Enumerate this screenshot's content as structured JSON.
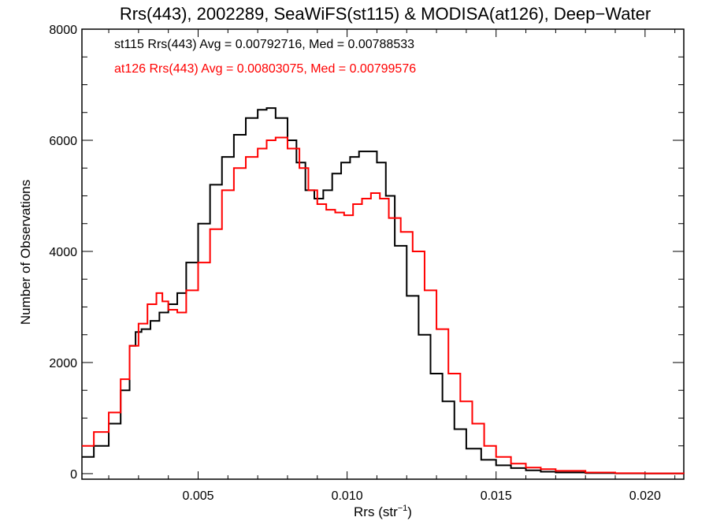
{
  "chart_data": {
    "type": "line",
    "step": true,
    "title": "Rrs(443), 2002289, SeaWiFS(st115) & MODISA(at126), Deep−Water",
    "xlabel": "Rrs (str",
    "xlabel_sup": "−1",
    "xlabel_close": ")",
    "ylabel": "Number of Observations",
    "xlim": [
      0.0011,
      0.0213
    ],
    "ylim": [
      -100,
      8000
    ],
    "xticks": [
      0.005,
      0.01,
      0.015,
      0.02
    ],
    "xtick_labels": [
      "0.005",
      "0.010",
      "0.015",
      "0.020"
    ],
    "yticks": [
      0,
      2000,
      4000,
      6000,
      8000
    ],
    "ytick_labels": [
      "0",
      "2000",
      "4000",
      "6000",
      "8000"
    ],
    "annotations": [
      {
        "text": "st115 Rrs(443) Avg = 0.00792716, Med = 0.00788533",
        "color": "#000000"
      },
      {
        "text": "at126 Rrs(443) Avg = 0.00803075, Med = 0.00799576",
        "color": "#ff0000"
      }
    ],
    "series": [
      {
        "color": "#000000",
        "points": [
          [
            0.0011,
            300
          ],
          [
            0.0015,
            500
          ],
          [
            0.002,
            900
          ],
          [
            0.0024,
            1500
          ],
          [
            0.0027,
            2300
          ],
          [
            0.0029,
            2550
          ],
          [
            0.0031,
            2600
          ],
          [
            0.0034,
            2750
          ],
          [
            0.0037,
            2900
          ],
          [
            0.004,
            3050
          ],
          [
            0.0043,
            3250
          ],
          [
            0.0046,
            3800
          ],
          [
            0.005,
            4500
          ],
          [
            0.0054,
            5200
          ],
          [
            0.0058,
            5700
          ],
          [
            0.0062,
            6100
          ],
          [
            0.0066,
            6400
          ],
          [
            0.007,
            6550
          ],
          [
            0.0073,
            6580
          ],
          [
            0.0076,
            6400
          ],
          [
            0.008,
            6000
          ],
          [
            0.0083,
            5600
          ],
          [
            0.0086,
            5100
          ],
          [
            0.0089,
            4950
          ],
          [
            0.0092,
            5100
          ],
          [
            0.0095,
            5400
          ],
          [
            0.0098,
            5600
          ],
          [
            0.0101,
            5700
          ],
          [
            0.0104,
            5800
          ],
          [
            0.0107,
            5800
          ],
          [
            0.011,
            5600
          ],
          [
            0.0113,
            5000
          ],
          [
            0.0116,
            4100
          ],
          [
            0.012,
            3200
          ],
          [
            0.0124,
            2500
          ],
          [
            0.0128,
            1800
          ],
          [
            0.0132,
            1300
          ],
          [
            0.0136,
            800
          ],
          [
            0.014,
            450
          ],
          [
            0.0145,
            250
          ],
          [
            0.015,
            150
          ],
          [
            0.0155,
            100
          ],
          [
            0.016,
            60
          ],
          [
            0.0165,
            35
          ],
          [
            0.017,
            20
          ],
          [
            0.018,
            10
          ],
          [
            0.019,
            5
          ],
          [
            0.02,
            3
          ],
          [
            0.0213,
            2
          ]
        ]
      },
      {
        "color": "#ff0000",
        "points": [
          [
            0.0011,
            500
          ],
          [
            0.0015,
            750
          ],
          [
            0.002,
            1100
          ],
          [
            0.0024,
            1700
          ],
          [
            0.0027,
            2300
          ],
          [
            0.003,
            2700
          ],
          [
            0.0033,
            3050
          ],
          [
            0.0036,
            3250
          ],
          [
            0.0038,
            3100
          ],
          [
            0.004,
            2950
          ],
          [
            0.0043,
            2900
          ],
          [
            0.0046,
            3300
          ],
          [
            0.005,
            3800
          ],
          [
            0.0054,
            4400
          ],
          [
            0.0058,
            5100
          ],
          [
            0.0062,
            5500
          ],
          [
            0.0066,
            5700
          ],
          [
            0.007,
            5850
          ],
          [
            0.0073,
            6000
          ],
          [
            0.0076,
            6050
          ],
          [
            0.008,
            5850
          ],
          [
            0.0084,
            5500
          ],
          [
            0.0087,
            5100
          ],
          [
            0.009,
            4850
          ],
          [
            0.0093,
            4750
          ],
          [
            0.0096,
            4700
          ],
          [
            0.0099,
            4650
          ],
          [
            0.0102,
            4850
          ],
          [
            0.0105,
            4950
          ],
          [
            0.0108,
            5050
          ],
          [
            0.0111,
            4950
          ],
          [
            0.0114,
            4600
          ],
          [
            0.0118,
            4350
          ],
          [
            0.0122,
            4000
          ],
          [
            0.0126,
            3300
          ],
          [
            0.013,
            2600
          ],
          [
            0.0134,
            1800
          ],
          [
            0.0138,
            1300
          ],
          [
            0.0142,
            900
          ],
          [
            0.0146,
            500
          ],
          [
            0.015,
            300
          ],
          [
            0.0155,
            180
          ],
          [
            0.016,
            110
          ],
          [
            0.0165,
            80
          ],
          [
            0.017,
            50
          ],
          [
            0.018,
            20
          ],
          [
            0.019,
            8
          ],
          [
            0.02,
            4
          ],
          [
            0.0213,
            2
          ]
        ]
      }
    ]
  }
}
